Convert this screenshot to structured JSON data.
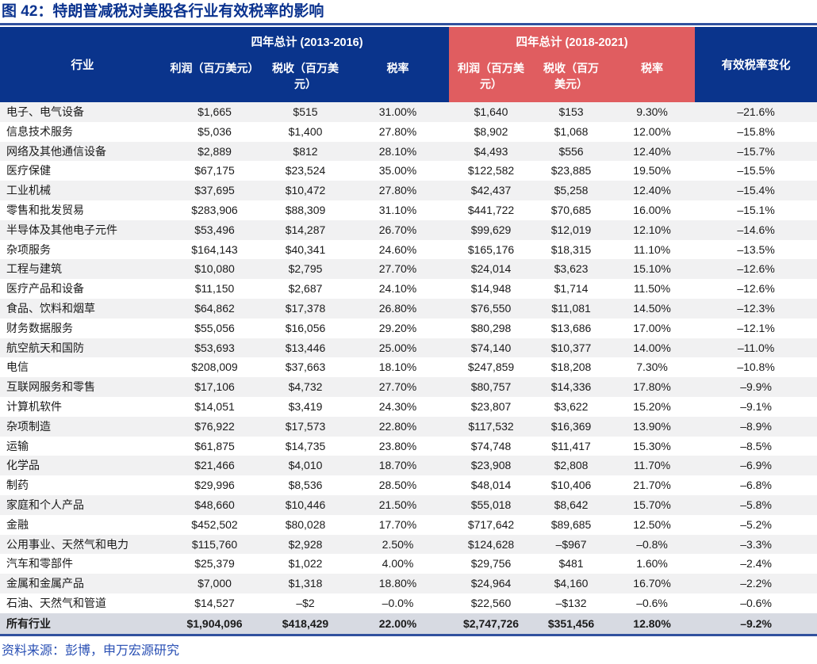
{
  "colors": {
    "header_blue": "#0A348C",
    "header_red": "#E05D60",
    "title_blue": "#0B338F",
    "rule_blue": "#31519E",
    "stripe_gray": "#F1F1F2",
    "total_row_bg": "#D7DAE2",
    "source_blue": "#2A50B4"
  },
  "chart_data": {
    "type": "table",
    "title": "图 42：特朗普减税对美股各行业有效税率的影响",
    "source": "资料来源：彭博，申万宏源研究",
    "industry_col": "行业",
    "change_col": "有效税率变化",
    "col_groups": [
      {
        "label": "四年总计 (2013-2016)",
        "columns": [
          "利润（百万美元）",
          "税收（百万美元）",
          "税率"
        ]
      },
      {
        "label": "四年总计 (2018-2021)",
        "columns": [
          "利润（百万美元）",
          "税收（百万美元）",
          "税率"
        ]
      }
    ],
    "rows": [
      [
        "电子、电气设备",
        "$1,665",
        "$515",
        "31.00%",
        "$1,640",
        "$153",
        "9.30%",
        "–21.6%"
      ],
      [
        "信息技术服务",
        "$5,036",
        "$1,400",
        "27.80%",
        "$8,902",
        "$1,068",
        "12.00%",
        "–15.8%"
      ],
      [
        "网络及其他通信设备",
        "$2,889",
        "$812",
        "28.10%",
        "$4,493",
        "$556",
        "12.40%",
        "–15.7%"
      ],
      [
        "医疗保健",
        "$67,175",
        "$23,524",
        "35.00%",
        "$122,582",
        "$23,885",
        "19.50%",
        "–15.5%"
      ],
      [
        "工业机械",
        "$37,695",
        "$10,472",
        "27.80%",
        "$42,437",
        "$5,258",
        "12.40%",
        "–15.4%"
      ],
      [
        "零售和批发贸易",
        "$283,906",
        "$88,309",
        "31.10%",
        "$441,722",
        "$70,685",
        "16.00%",
        "–15.1%"
      ],
      [
        "半导体及其他电子元件",
        "$53,496",
        "$14,287",
        "26.70%",
        "$99,629",
        "$12,019",
        "12.10%",
        "–14.6%"
      ],
      [
        "杂项服务",
        "$164,143",
        "$40,341",
        "24.60%",
        "$165,176",
        "$18,315",
        "11.10%",
        "–13.5%"
      ],
      [
        "工程与建筑",
        "$10,080",
        "$2,795",
        "27.70%",
        "$24,014",
        "$3,623",
        "15.10%",
        "–12.6%"
      ],
      [
        "医疗产品和设备",
        "$11,150",
        "$2,687",
        "24.10%",
        "$14,948",
        "$1,714",
        "11.50%",
        "–12.6%"
      ],
      [
        "食品、饮料和烟草",
        "$64,862",
        "$17,378",
        "26.80%",
        "$76,550",
        "$11,081",
        "14.50%",
        "–12.3%"
      ],
      [
        "财务数据服务",
        "$55,056",
        "$16,056",
        "29.20%",
        "$80,298",
        "$13,686",
        "17.00%",
        "–12.1%"
      ],
      [
        "航空航天和国防",
        "$53,693",
        "$13,446",
        "25.00%",
        "$74,140",
        "$10,377",
        "14.00%",
        "–11.0%"
      ],
      [
        "电信",
        "$208,009",
        "$37,663",
        "18.10%",
        "$247,859",
        "$18,208",
        "7.30%",
        "–10.8%"
      ],
      [
        "互联网服务和零售",
        "$17,106",
        "$4,732",
        "27.70%",
        "$80,757",
        "$14,336",
        "17.80%",
        "–9.9%"
      ],
      [
        "计算机软件",
        "$14,051",
        "$3,419",
        "24.30%",
        "$23,807",
        "$3,622",
        "15.20%",
        "–9.1%"
      ],
      [
        "杂项制造",
        "$76,922",
        "$17,573",
        "22.80%",
        "$117,532",
        "$16,369",
        "13.90%",
        "–8.9%"
      ],
      [
        "运输",
        "$61,875",
        "$14,735",
        "23.80%",
        "$74,748",
        "$11,417",
        "15.30%",
        "–8.5%"
      ],
      [
        "化学品",
        "$21,466",
        "$4,010",
        "18.70%",
        "$23,908",
        "$2,808",
        "11.70%",
        "–6.9%"
      ],
      [
        "制药",
        "$29,996",
        "$8,536",
        "28.50%",
        "$48,014",
        "$10,406",
        "21.70%",
        "–6.8%"
      ],
      [
        "家庭和个人产品",
        "$48,660",
        "$10,446",
        "21.50%",
        "$55,018",
        "$8,642",
        "15.70%",
        "–5.8%"
      ],
      [
        "金融",
        "$452,502",
        "$80,028",
        "17.70%",
        "$717,642",
        "$89,685",
        "12.50%",
        "–5.2%"
      ],
      [
        "公用事业、天然气和电力",
        "$115,760",
        "$2,928",
        "2.50%",
        "$124,628",
        "–$967",
        "–0.8%",
        "–3.3%"
      ],
      [
        "汽车和零部件",
        "$25,379",
        "$1,022",
        "4.00%",
        "$29,756",
        "$481",
        "1.60%",
        "–2.4%"
      ],
      [
        "金属和金属产品",
        "$7,000",
        "$1,318",
        "18.80%",
        "$24,964",
        "$4,160",
        "16.70%",
        "–2.2%"
      ],
      [
        "石油、天然气和管道",
        "$14,527",
        "–$2",
        "–0.0%",
        "$22,560",
        "–$132",
        "–0.6%",
        "–0.6%"
      ]
    ],
    "total_row": [
      "所有行业",
      "$1,904,096",
      "$418,429",
      "22.00%",
      "$2,747,726",
      "$351,456",
      "12.80%",
      "–9.2%"
    ]
  }
}
